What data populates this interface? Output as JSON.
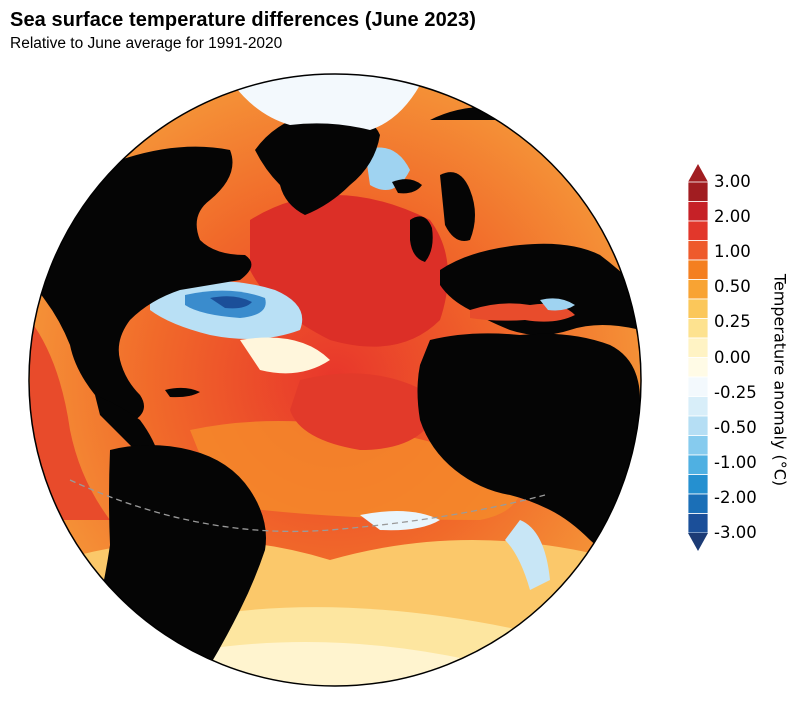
{
  "title": "Sea surface temperature differences (June 2023)",
  "subtitle": "Relative to June average for 1991-2020",
  "legend": {
    "title": "Temperature anomaly (°C)",
    "tick_labels": [
      "3.00",
      "2.00",
      "1.00",
      "0.50",
      "0.25",
      "0.00",
      "-0.25",
      "-0.50",
      "-1.00",
      "-2.00",
      "-3.00"
    ],
    "bins": [
      {
        "color": "#a11d21"
      },
      {
        "color": "#c62127"
      },
      {
        "color": "#e2372b"
      },
      {
        "color": "#ee5a2c"
      },
      {
        "color": "#f47f20"
      },
      {
        "color": "#f8a333"
      },
      {
        "color": "#fbc75a"
      },
      {
        "color": "#fde28f"
      },
      {
        "color": "#fff3c4"
      },
      {
        "color": "#fffbe6"
      },
      {
        "color": "#f3f9fd"
      },
      {
        "color": "#d8eef9"
      },
      {
        "color": "#b5def4"
      },
      {
        "color": "#86cbee"
      },
      {
        "color": "#4fb0e2"
      },
      {
        "color": "#2590d0"
      },
      {
        "color": "#1b6fb7"
      },
      {
        "color": "#1b4f99"
      }
    ],
    "over_color": "#a11d21",
    "under_color": "#1c3b75"
  },
  "map": {
    "projection": "orthographic globe centered on the Atlantic Ocean",
    "land_color": "#050505",
    "ice_color": "#f3f9fd",
    "outline_color": "#000000",
    "equator_line": "dashed grey"
  }
}
